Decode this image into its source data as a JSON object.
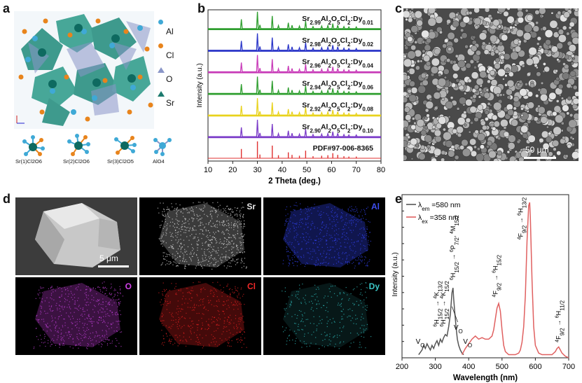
{
  "panels": {
    "a": {
      "label": "a",
      "legend": [
        {
          "name": "Al",
          "color": "#3fa9d6",
          "icon": "circle"
        },
        {
          "name": "Cl",
          "color": "#e8841c",
          "icon": "circle"
        },
        {
          "name": "O",
          "color": "#8a96c8",
          "icon": "triangle-up"
        },
        {
          "name": "Sr",
          "color": "#1c7a6e",
          "icon": "triangle-up"
        }
      ],
      "polyhedra": [
        "Sr(1)Cl2O6",
        "Sr(2)Cl2O6",
        "Sr(3)Cl2O5",
        "AlO4"
      ]
    },
    "b": {
      "label": "b"
    },
    "c": {
      "label": "c",
      "scale_bar": "50 μm"
    },
    "d": {
      "label": "d",
      "scale_bar": "5 μm",
      "maps": [
        {
          "element": "Sr",
          "color": "#e8e8e8"
        },
        {
          "element": "Al",
          "color": "#2f3fe0"
        },
        {
          "element": "O",
          "color": "#c23bd6"
        },
        {
          "element": "Cl",
          "color": "#e02020"
        },
        {
          "element": "Dy",
          "color": "#3cc8c8"
        }
      ]
    },
    "e": {
      "label": "e"
    }
  },
  "chart_data": [
    {
      "type": "line",
      "panel": "b",
      "xlabel": "2 Theta (deg.)",
      "ylabel": "Intensity (a.u.)",
      "xlim": [
        10,
        80
      ],
      "xticks": [
        10,
        20,
        30,
        40,
        50,
        60,
        70,
        80
      ],
      "series": [
        {
          "name": "Sr2.99Al2O5Cl2:Dy0.01",
          "base": "Sr",
          "sub1": "2.99",
          "mid": "Al",
          "sub2": "2",
          "mid2": "O",
          "sub3": "5",
          "mid3": "Cl",
          "sub4": "2",
          "end": ":Dy",
          "sub5": "0.01",
          "color": "#2e9e2e"
        },
        {
          "name": "Sr2.98Al2O5Cl2:Dy0.02",
          "base": "Sr",
          "sub1": "2.98",
          "mid": "Al",
          "sub2": "2",
          "mid2": "O",
          "sub3": "5",
          "mid3": "Cl",
          "sub4": "2",
          "end": ":Dy",
          "sub5": "0.02",
          "color": "#2a35c8"
        },
        {
          "name": "Sr2.96Al2O5Cl2:Dy0.04",
          "base": "Sr",
          "sub1": "2.96",
          "mid": "Al",
          "sub2": "2",
          "mid2": "O",
          "sub3": "5",
          "mid3": "Cl",
          "sub4": "2",
          "end": ":Dy",
          "sub5": "0.04",
          "color": "#c83ab8"
        },
        {
          "name": "Sr2.94Al2O5Cl2:Dy0.06",
          "base": "Sr",
          "sub1": "2.94",
          "mid": "Al",
          "sub2": "2",
          "mid2": "O",
          "sub3": "5",
          "mid3": "Cl",
          "sub4": "2",
          "end": ":Dy",
          "sub5": "0.06",
          "color": "#2e9e2e"
        },
        {
          "name": "Sr2.92Al2O5Cl2:Dy0.08",
          "base": "Sr",
          "sub1": "2.92",
          "mid": "Al",
          "sub2": "2",
          "mid2": "O",
          "sub3": "5",
          "mid3": "Cl",
          "sub4": "2",
          "end": ":Dy",
          "sub5": "0.08",
          "color": "#e8d21c"
        },
        {
          "name": "Sr2.90Al2O5Cl2:Dy0.10",
          "base": "Sr",
          "sub1": "2.90",
          "mid": "Al",
          "sub2": "2",
          "mid2": "O",
          "sub3": "5",
          "mid3": "Cl",
          "sub4": "2",
          "end": ":Dy",
          "sub5": "0.10",
          "color": "#7a3ac8"
        },
        {
          "name": "PDF#97-006-8365",
          "base": "PDF#97-006-8365",
          "color": "#e03030",
          "reference": true
        }
      ],
      "peaks": [
        {
          "x": 23.5,
          "h": 0.55
        },
        {
          "x": 30.0,
          "h": 1.0
        },
        {
          "x": 31.0,
          "h": 0.22
        },
        {
          "x": 36.0,
          "h": 0.75
        },
        {
          "x": 38.5,
          "h": 0.18
        },
        {
          "x": 42.5,
          "h": 0.35
        },
        {
          "x": 44.0,
          "h": 0.2
        },
        {
          "x": 47.0,
          "h": 0.15
        },
        {
          "x": 49.5,
          "h": 0.45
        },
        {
          "x": 52.5,
          "h": 0.12
        },
        {
          "x": 56.0,
          "h": 0.15
        },
        {
          "x": 58.5,
          "h": 0.18
        },
        {
          "x": 60.5,
          "h": 0.3
        },
        {
          "x": 62.5,
          "h": 0.2
        },
        {
          "x": 65.0,
          "h": 0.12
        },
        {
          "x": 67.0,
          "h": 0.1
        },
        {
          "x": 70.0,
          "h": 0.1
        }
      ]
    },
    {
      "type": "line",
      "panel": "e",
      "xlabel": "Wavelength (nm)",
      "ylabel": "Intensity (a.u.)",
      "xlim": [
        200,
        700
      ],
      "xticks": [
        200,
        300,
        400,
        500,
        600,
        700
      ],
      "ylim": [
        0,
        1.05
      ],
      "legend_placement": "top-left",
      "series": [
        {
          "name": "λem =580 nm",
          "legend_main": "λ",
          "legend_sub": "em",
          "legend_rest": " =580 nm",
          "color": "#555555",
          "x": [
            250,
            260,
            265,
            270,
            275,
            280,
            285,
            290,
            295,
            300,
            305,
            310,
            315,
            320,
            325,
            330,
            335,
            340,
            345,
            350,
            353,
            355,
            358,
            362,
            366,
            370,
            375,
            380,
            385
          ],
          "y": [
            0.02,
            0.05,
            0.08,
            0.06,
            0.09,
            0.07,
            0.05,
            0.08,
            0.06,
            0.09,
            0.11,
            0.08,
            0.12,
            0.1,
            0.13,
            0.15,
            0.14,
            0.2,
            0.28,
            0.42,
            0.45,
            0.38,
            0.3,
            0.2,
            0.12,
            0.08,
            0.05,
            0.03,
            0.02
          ]
        },
        {
          "name": "λex =358 nm",
          "legend_main": "λ",
          "legend_sub": "ex",
          "legend_rest": " =358 nm",
          "color": "#e06060",
          "x": [
            380,
            390,
            400,
            410,
            420,
            430,
            440,
            450,
            460,
            470,
            475,
            480,
            485,
            490,
            495,
            500,
            505,
            510,
            520,
            530,
            540,
            550,
            555,
            560,
            565,
            570,
            575,
            580,
            583,
            585,
            590,
            595,
            600,
            610,
            620,
            630,
            640,
            650,
            660,
            665,
            670,
            675,
            680,
            690,
            700
          ],
          "y": [
            0.02,
            0.06,
            0.09,
            0.12,
            0.14,
            0.12,
            0.13,
            0.12,
            0.12,
            0.14,
            0.18,
            0.25,
            0.32,
            0.35,
            0.3,
            0.18,
            0.08,
            0.04,
            0.02,
            0.02,
            0.02,
            0.03,
            0.05,
            0.1,
            0.2,
            0.4,
            0.75,
            0.98,
            1.0,
            0.9,
            0.5,
            0.2,
            0.08,
            0.03,
            0.02,
            0.02,
            0.02,
            0.02,
            0.04,
            0.06,
            0.07,
            0.05,
            0.03,
            0.01,
            0.0
          ]
        }
      ],
      "annotations": [
        {
          "id": "vo1",
          "text": "VO",
          "x": 258,
          "y": 0.07
        },
        {
          "id": "vo2",
          "text": "VO",
          "x": 366,
          "y": 0.18
        },
        {
          "id": "vo3",
          "text": "VO",
          "x": 400,
          "y": 0.08
        },
        {
          "id": "h1",
          "text": "6H15/2 → 4K13/2"
        },
        {
          "id": "h2",
          "text": "6H15/2 → 4K15/2"
        },
        {
          "id": "h3",
          "text": "6H15/2 → 6P7/2, 4M15/2"
        },
        {
          "id": "t1",
          "text": "4F9/2 → 6H15/2"
        },
        {
          "id": "t2",
          "text": "4F9/2 → 6H13/2"
        },
        {
          "id": "t3",
          "text": "4F9/2 → 6H11/2"
        }
      ]
    }
  ]
}
